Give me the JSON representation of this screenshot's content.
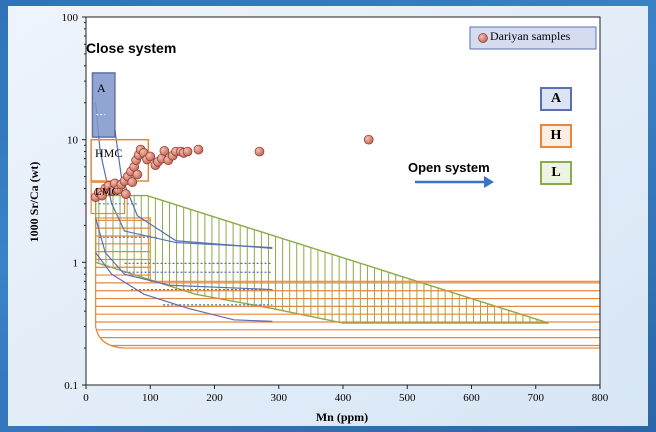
{
  "chart_data": {
    "type": "scatter",
    "title": "",
    "xlabel": "Mn (ppm)",
    "ylabel": "1000 Sr/Ca (wt)",
    "xlim": [
      0,
      800
    ],
    "ylim": [
      0.1,
      100
    ],
    "yscale": "log",
    "x_ticks": [
      "0",
      "100",
      "200",
      "300",
      "400",
      "500",
      "600",
      "700",
      "800"
    ],
    "y_ticks": [
      "0.1",
      "1",
      "10",
      "100"
    ],
    "grid": false,
    "legend_position": "top-right",
    "series": [
      {
        "name": "Dariyan samples",
        "color": "#d98070",
        "points": [
          [
            15,
            3.4
          ],
          [
            20,
            3.7
          ],
          [
            25,
            3.5
          ],
          [
            30,
            4.0
          ],
          [
            35,
            4.2
          ],
          [
            40,
            3.8
          ],
          [
            45,
            4.4
          ],
          [
            50,
            3.9
          ],
          [
            55,
            4.3
          ],
          [
            60,
            4.6
          ],
          [
            62,
            3.6
          ],
          [
            65,
            5.0
          ],
          [
            70,
            5.5
          ],
          [
            72,
            4.5
          ],
          [
            75,
            6.0
          ],
          [
            78,
            6.8
          ],
          [
            80,
            5.2
          ],
          [
            82,
            7.5
          ],
          [
            85,
            8.3
          ],
          [
            90,
            7.8
          ],
          [
            95,
            6.9
          ],
          [
            100,
            7.3
          ],
          [
            108,
            6.2
          ],
          [
            112,
            6.6
          ],
          [
            118,
            7.0
          ],
          [
            122,
            8.1
          ],
          [
            128,
            6.8
          ],
          [
            135,
            7.4
          ],
          [
            140,
            8.0
          ],
          [
            148,
            8.0
          ],
          [
            152,
            7.8
          ],
          [
            158,
            8.0
          ],
          [
            175,
            8.3
          ],
          [
            270,
            8.0
          ],
          [
            440,
            10.0
          ]
        ]
      }
    ],
    "annotations": {
      "close_system": "Close system",
      "open_system": "Open system",
      "region_a": "A",
      "region_hmc": "HMC",
      "region_lmc": "LMC"
    },
    "key": [
      {
        "label": "A",
        "hatch": "dotted",
        "color": "#5a6fb5"
      },
      {
        "label": "H",
        "hatch": "horizontal",
        "color": "#e6873d"
      },
      {
        "label": "L",
        "hatch": "vertical",
        "color": "#8bab48"
      }
    ]
  }
}
